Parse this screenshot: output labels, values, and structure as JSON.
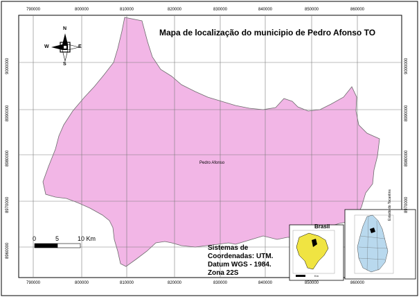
{
  "map": {
    "title": "Mapa de localização do municipio de Pedro Afonso TO",
    "place_label": "Pedro Afonso",
    "easting_labels": [
      "790000",
      "800000",
      "810000",
      "820000",
      "830000",
      "840000",
      "850000",
      "860000"
    ],
    "northing_labels": [
      "9000000",
      "8990000",
      "8980000",
      "8970000",
      "8960000"
    ],
    "fill_color": "#f2b6e6",
    "outline_color": "#6b6b6b",
    "grid_color": "#7a7a7a"
  },
  "compass": {
    "n": "N",
    "s": "S",
    "e": "E",
    "w": "W"
  },
  "scale_bar": {
    "start": "0",
    "mid": "5",
    "end": "10 Km"
  },
  "info": {
    "line1": "Sistemas de",
    "line2": "Coordenadas: UTM.",
    "line3": "Datum WGS - 1984.",
    "line4": "Zona 22S"
  },
  "inset_brasil": {
    "title": "Brasil",
    "unit": "Km",
    "fill": "#f0e442"
  },
  "inset_tocantins": {
    "title": "Estado do Tocantins",
    "fill": "#b9d9ee"
  }
}
